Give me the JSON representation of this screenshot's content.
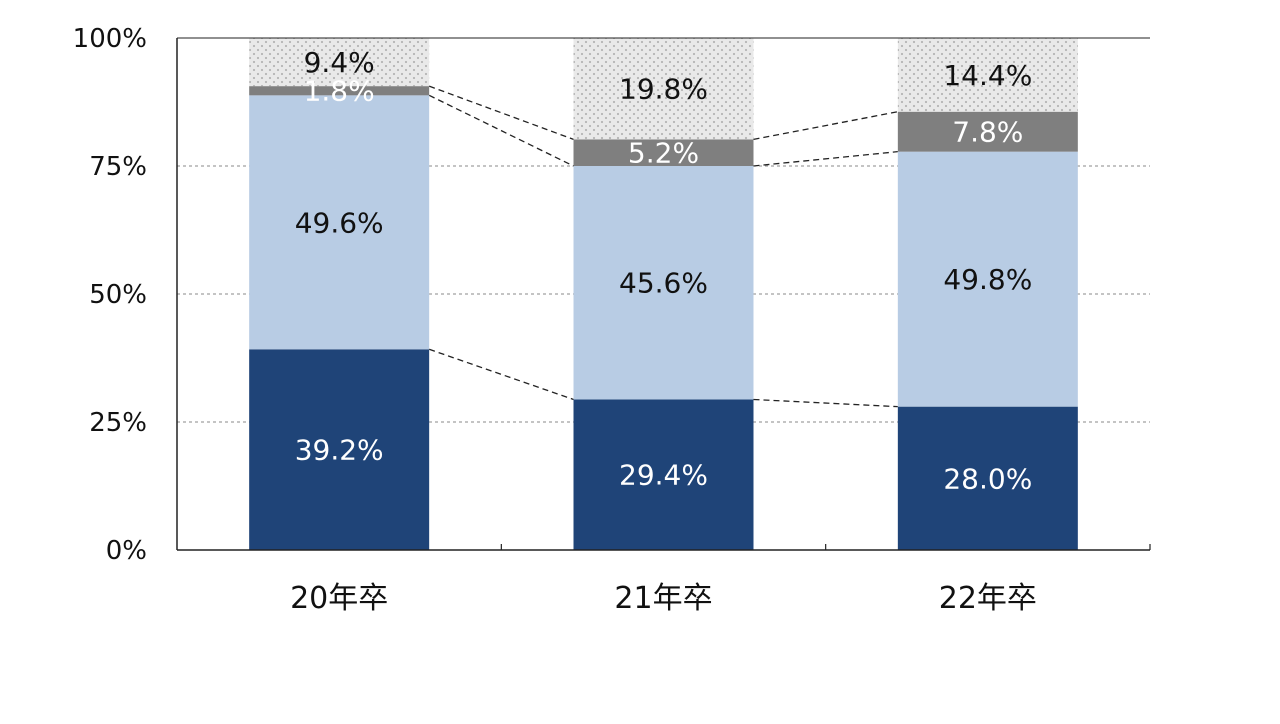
{
  "chart_data": {
    "type": "bar",
    "stacked": true,
    "categories": [
      "20年卒",
      "21年卒",
      "22年卒"
    ],
    "series": [
      {
        "key": "s1",
        "values": [
          39.2,
          29.4,
          28.0
        ],
        "labels": [
          "39.2%",
          "29.4%",
          "28.0%"
        ],
        "color": "#1f4478",
        "label_color": "#ffffff"
      },
      {
        "key": "s2",
        "values": [
          49.6,
          45.6,
          49.8
        ],
        "labels": [
          "49.6%",
          "45.6%",
          "49.8%"
        ],
        "color": "#b8cce4",
        "label_color": "#111111"
      },
      {
        "key": "s3",
        "values": [
          1.8,
          5.2,
          7.8
        ],
        "labels": [
          "1.8%",
          "5.2%",
          "7.8%"
        ],
        "color": "#7f7f7f",
        "label_color": "#ffffff"
      },
      {
        "key": "s4",
        "values": [
          9.4,
          19.8,
          14.4
        ],
        "labels": [
          "9.4%",
          "19.8%",
          "14.4%"
        ],
        "color": "#e6e6e6",
        "pattern": "dots",
        "label_color": "#111111"
      }
    ],
    "y_ticks": [
      {
        "value": 0,
        "label": "0%"
      },
      {
        "value": 25,
        "label": "25%"
      },
      {
        "value": 50,
        "label": "50%"
      },
      {
        "value": 75,
        "label": "75%"
      },
      {
        "value": 100,
        "label": "100%"
      }
    ],
    "ylim": [
      0,
      100
    ],
    "grid": true,
    "legend": "none",
    "connector_lines": true
  }
}
